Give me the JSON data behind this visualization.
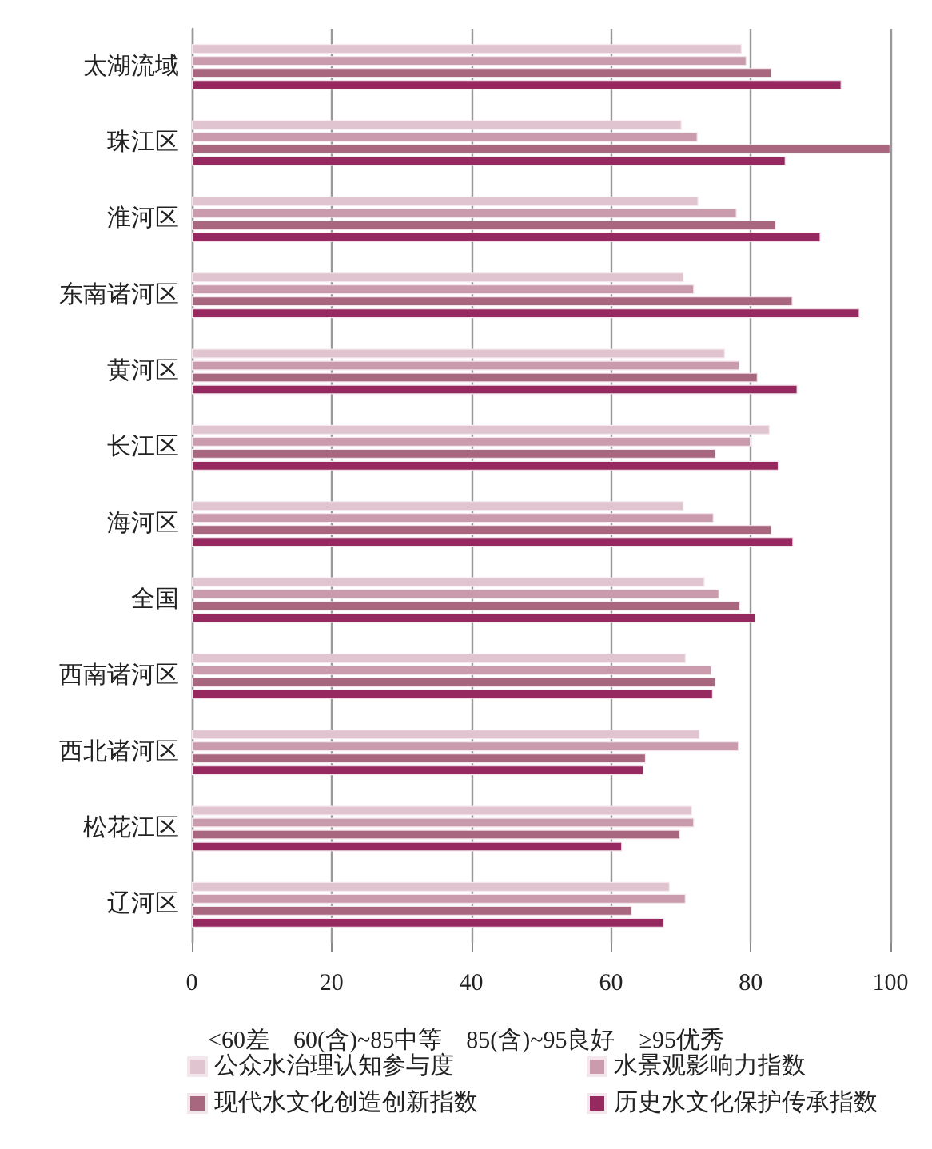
{
  "chart_data": {
    "type": "bar",
    "orientation": "horizontal",
    "categories": [
      "太湖流域",
      "珠江区",
      "淮河区",
      "东南诸河区",
      "黄河区",
      "长江区",
      "海河区",
      "全国",
      "西南诸河区",
      "西北诸河区",
      "松花江区",
      "辽河区"
    ],
    "series": [
      {
        "name": "公众水治理认知参与度",
        "color": "#e0c4d0",
        "values": [
          78.7,
          70.1,
          72.5,
          70.4,
          76.3,
          82.7,
          70.4,
          73.4,
          70.7,
          72.7,
          71.6,
          68.4
        ]
      },
      {
        "name": "水景观影响力指数",
        "color": "#c99bac",
        "values": [
          79.4,
          72.4,
          78.0,
          71.9,
          78.4,
          80.0,
          74.7,
          75.5,
          74.4,
          78.3,
          71.9,
          70.7
        ]
      },
      {
        "name": "现代水文化创造创新指数",
        "color": "#a8667f",
        "values": [
          83.0,
          100,
          83.6,
          86.0,
          81.0,
          75.0,
          83.0,
          78.5,
          75.0,
          65.0,
          69.9,
          63.0
        ]
      },
      {
        "name": "历史水文化保护传承指数",
        "color": "#962a60",
        "values": [
          93.0,
          85.0,
          90.0,
          95.6,
          86.7,
          84.0,
          86.1,
          80.7,
          74.6,
          64.7,
          61.6,
          67.6
        ]
      }
    ],
    "xlim": [
      0,
      100
    ],
    "xticks": [
      0,
      20,
      40,
      60,
      80,
      100
    ],
    "grid": "x",
    "legend": "bottom",
    "annotations": [
      "<60差　60(含)~85中等　85(含)~95良好　≥95优秀"
    ]
  }
}
